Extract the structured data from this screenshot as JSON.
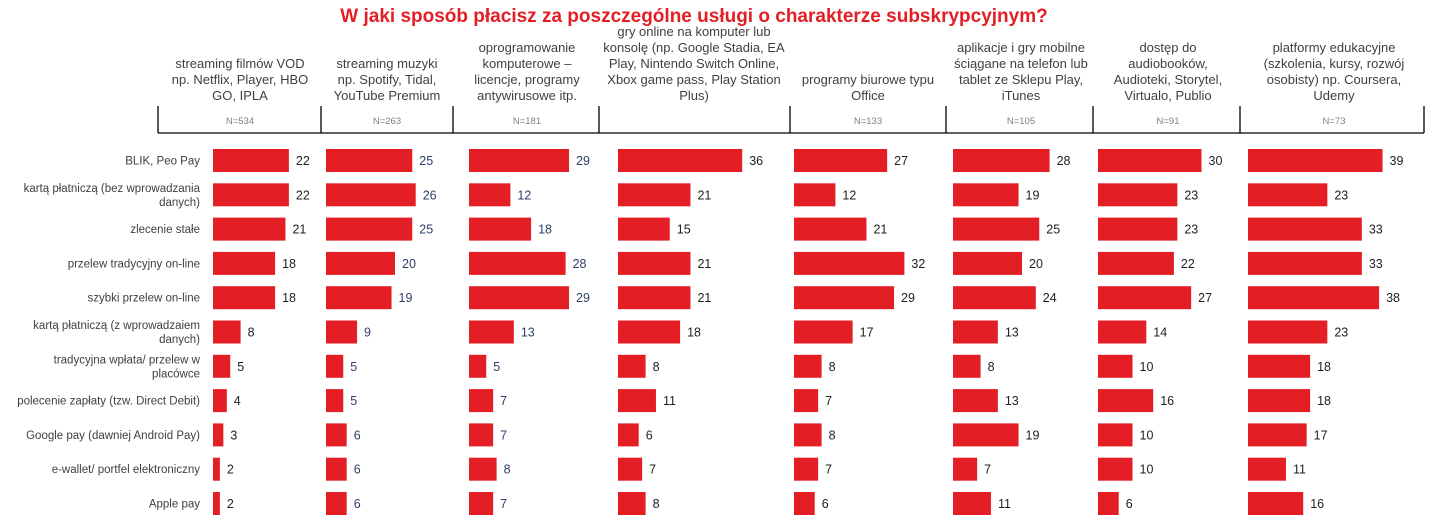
{
  "chart_data": {
    "type": "bar",
    "orientation": "horizontal",
    "title": "W jaki sposób płacisz za poszczególne usługi o charakterze subskrypcyjnym?",
    "categories": [
      "BLIK, Peo Pay",
      "kartą płatniczą (bez wprowadzania danych)",
      "zlecenie stałe",
      "przelew tradycyjny on-line",
      "szybki przelew on-line",
      "kartą płatniczą (z wprowadzaiem danych)",
      "tradycyjna wpłata/ przelew w placówce",
      "polecenie zapłaty (tzw. Direct Debit)",
      "Google pay (dawniej Android Pay)",
      "e-wallet/ portfel elektroniczny",
      "Apple pay"
    ],
    "category_lines": [
      [
        "BLIK, Peo Pay"
      ],
      [
        "kartą płatniczą (bez wprowadzania",
        "danych)"
      ],
      [
        "zlecenie stałe"
      ],
      [
        "przelew tradycyjny on-line"
      ],
      [
        "szybki przelew on-line"
      ],
      [
        "kartą płatniczą (z wprowadzaiem",
        "danych)"
      ],
      [
        "tradycyjna wpłata/ przelew w",
        "placówce"
      ],
      [
        "polecenie zapłaty (tzw. Direct Debit)"
      ],
      [
        "Google pay (dawniej Android Pay)"
      ],
      [
        "e-wallet/ portfel elektroniczny"
      ],
      [
        "Apple pay"
      ]
    ],
    "series": [
      {
        "name": "streaming filmów VOD np. Netflix, Player, HBO GO, IPLA",
        "header_lines": [
          "streaming filmów VOD",
          "np. Netflix, Player, HBO",
          "GO, IPLA"
        ],
        "n": "N=534",
        "values": [
          22,
          22,
          21,
          18,
          18,
          8,
          5,
          4,
          3,
          2,
          2
        ]
      },
      {
        "name": "streaming muzyki np. Spotify, Tidal, YouTube Premium",
        "header_lines": [
          "streaming muzyki",
          "np. Spotify, Tidal,",
          "YouTube Premium"
        ],
        "n": "N=263",
        "values": [
          25,
          26,
          25,
          20,
          19,
          9,
          5,
          5,
          6,
          6,
          6
        ]
      },
      {
        "name": "oprogramowanie komputerowe – licencje, programy antywirusowe itp.",
        "header_lines": [
          "oprogramowanie",
          "komputerowe –",
          "licencje, programy",
          "antywirusowe itp."
        ],
        "n": "N=181",
        "values": [
          29,
          12,
          18,
          28,
          29,
          13,
          5,
          7,
          7,
          8,
          7
        ]
      },
      {
        "name": "gry online na komputer lub konsolę (np. Google Stadia, EA Play, Nintendo Switch Online, Xbox game pass, Play Station Plus)",
        "header_lines": [
          "gry online na komputer lub",
          "konsolę (np. Google Stadia, EA",
          "Play, Nintendo Switch Online,",
          "Xbox game pass, Play Station",
          "Plus)"
        ],
        "n": "",
        "values": [
          36,
          21,
          15,
          21,
          21,
          18,
          8,
          11,
          6,
          7,
          8
        ]
      },
      {
        "name": "programy biurowe typu Office",
        "header_lines": [
          "programy biurowe typu",
          "Office"
        ],
        "n": "N=133",
        "values": [
          27,
          12,
          21,
          32,
          29,
          17,
          8,
          7,
          8,
          7,
          6
        ]
      },
      {
        "name": "aplikacje i gry mobilne ściągane na telefon lub tablet ze Sklepu Play, iTunes",
        "header_lines": [
          "aplikacje i gry mobilne",
          "ściągane na telefon lub",
          "tablet ze Sklepu Play,",
          "iTunes"
        ],
        "n": "N=105",
        "values": [
          28,
          19,
          25,
          20,
          24,
          13,
          8,
          13,
          19,
          7,
          11
        ]
      },
      {
        "name": "dostęp do audiobooków, Audioteki, Storytel, Virtualo, Publio",
        "header_lines": [
          "dostęp do",
          "audiobooków,",
          "Audioteki, Storytel,",
          "Virtualo, Publio"
        ],
        "n": "N=91",
        "values": [
          30,
          23,
          23,
          22,
          27,
          14,
          10,
          16,
          10,
          10,
          6
        ]
      },
      {
        "name": "platformy edukacyjne (szkolenia, kursy, rozwój osobisty) np. Coursera, Udemy",
        "header_lines": [
          "platformy edukacyjne",
          "(szkolenia, kursy, rozwój",
          "osobisty) np. Coursera,",
          "Udemy"
        ],
        "n": "N=73",
        "values": [
          39,
          23,
          33,
          33,
          38,
          23,
          18,
          18,
          17,
          11,
          16
        ]
      }
    ],
    "value_unit": "%",
    "colors": {
      "bar": "#e31e24",
      "title": "#e31e24",
      "text": "#404040",
      "value_alt": "#2f3f6a"
    }
  }
}
